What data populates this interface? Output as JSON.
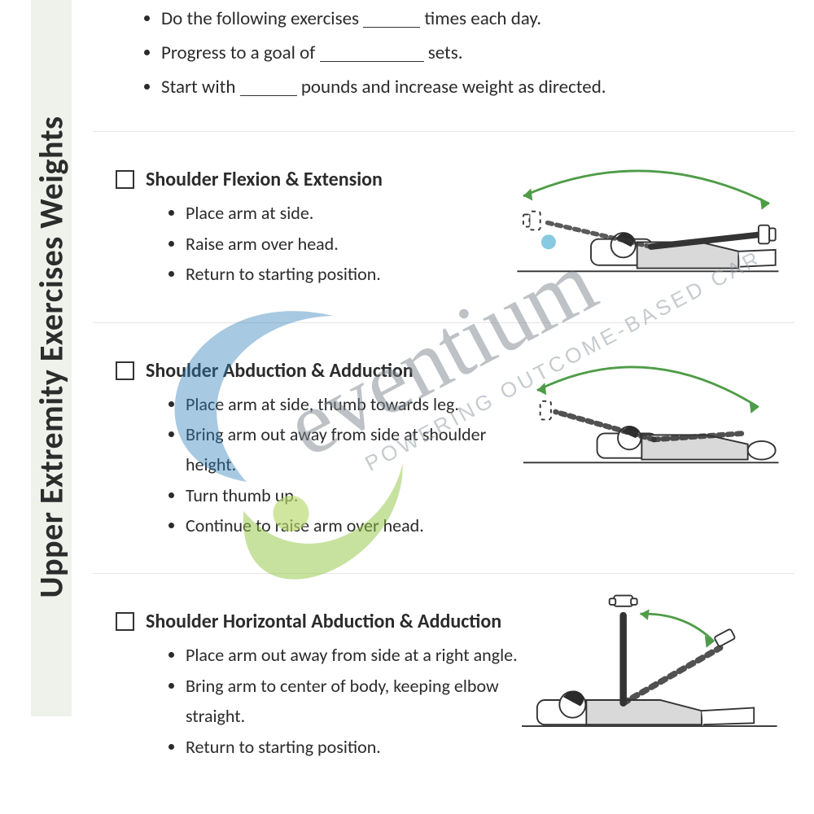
{
  "sideTitle": "Upper Extremity Exercises Weights",
  "colors": {
    "sideBar": "#eef2eb",
    "text": "#2b2b2b",
    "rule": "#e6e6e6",
    "arcGreen": "#4e9c47",
    "figureStroke": "#333333",
    "figureFill": "#d9d9d9",
    "wmBlue": "#2c7fb8",
    "wmGreen": "#8fc642",
    "wmGrey": "#7e8891",
    "wmDot": "#5bb6d6",
    "wmTagline": "#8f98a1"
  },
  "intro": {
    "items": [
      {
        "pre": "Do the following exercises ",
        "blankClass": "short",
        "post": " times each day."
      },
      {
        "pre": "Progress to a goal of ",
        "blankClass": "med",
        "post": " sets."
      },
      {
        "pre": "Start with ",
        "blankClass": "short",
        "post": " pounds and increase weight as directed."
      }
    ]
  },
  "exercises": [
    {
      "title": "Shoulder Flexion & Extension",
      "steps": [
        "Place arm at side.",
        "Raise arm over head.",
        "Return to starting position."
      ],
      "illus": "flexion"
    },
    {
      "title": "Shoulder Abduction & Adduction",
      "steps": [
        "Place arm at side, thumb towards leg.",
        "Bring arm out away from side at shoulder height.",
        "Turn thumb up.",
        "Continue to raise arm over head."
      ],
      "illus": "abduction"
    },
    {
      "title": "Shoulder Horizontal Abduction & Adduction",
      "steps": [
        "Place arm out away from side at a right angle.",
        "Bring arm to center of body, keeping elbow straight.",
        "Return to starting position."
      ],
      "illus": "horizontal"
    }
  ],
  "watermark": {
    "brand": "eventium",
    "tagline": "POWERING OUTCOME-BASED CARE"
  }
}
